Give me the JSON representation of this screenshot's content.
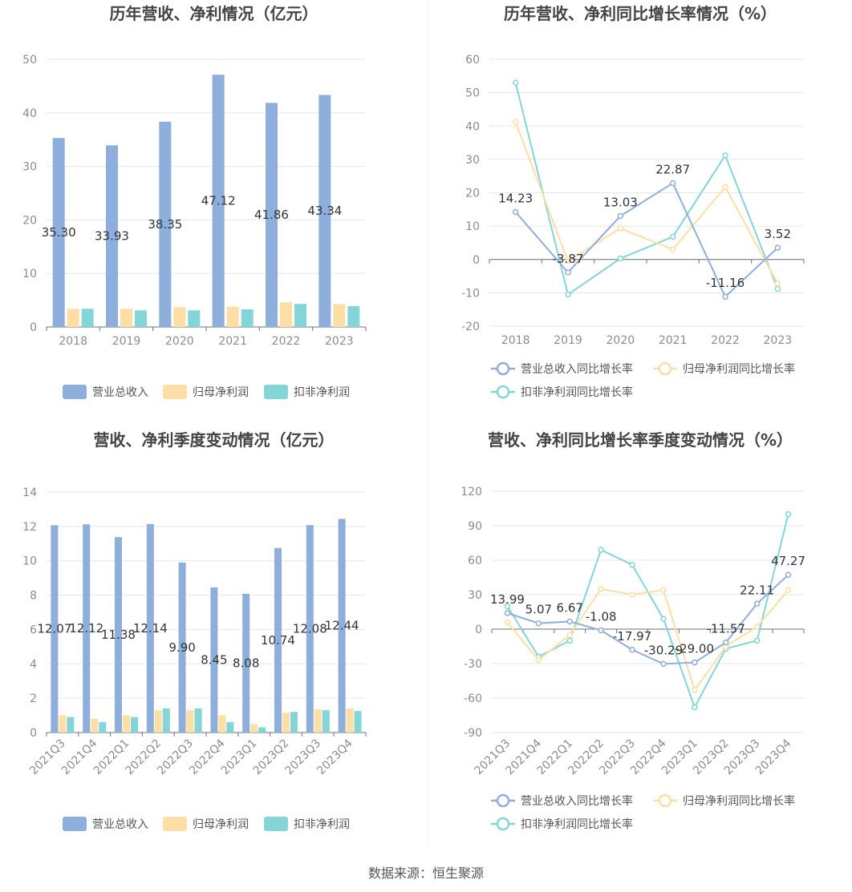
{
  "colors": {
    "revenue": "#8eaedb",
    "parent_profit": "#fddfa6",
    "deducted_profit": "#84d5d7",
    "axis": "#7f7f7f",
    "grid": "#e3e7ee",
    "title": "#444444",
    "text": "#666666"
  },
  "source_text": "数据来源：恒生聚源",
  "chart_data": [
    {
      "type": "bar",
      "title": "历年营收、净利情况（亿元）",
      "categories": [
        "2018",
        "2019",
        "2020",
        "2021",
        "2022",
        "2023"
      ],
      "ylim": [
        0,
        50
      ],
      "yticks": [
        0,
        10,
        20,
        30,
        40,
        50
      ],
      "grid": true,
      "legend_position": "bottom",
      "series": [
        {
          "name": "营业总收入",
          "values": [
            35.3,
            33.93,
            38.35,
            47.12,
            41.86,
            43.34
          ],
          "labels": [
            "35.30",
            "33.93",
            "38.35",
            "47.12",
            "41.86",
            "43.34"
          ]
        },
        {
          "name": "归母净利润",
          "values": [
            3.4,
            3.4,
            3.7,
            3.8,
            4.6,
            4.3
          ]
        },
        {
          "name": "扣非净利润",
          "values": [
            3.4,
            3.1,
            3.1,
            3.3,
            4.3,
            3.9
          ]
        }
      ]
    },
    {
      "type": "line",
      "title": "历年营收、净利同比增长率情况（%）",
      "categories": [
        "2018",
        "2019",
        "2020",
        "2021",
        "2022",
        "2023"
      ],
      "ylim": [
        -20,
        60
      ],
      "yticks": [
        -20,
        -10,
        0,
        10,
        20,
        30,
        40,
        50,
        60
      ],
      "grid": true,
      "legend_position": "bottom",
      "series": [
        {
          "name": "营业总收入同比增长率",
          "values": [
            14.23,
            -3.87,
            13.03,
            22.87,
            -11.16,
            3.52
          ],
          "labels": [
            "14.23",
            "-3.87",
            "13.03",
            "22.87",
            "-11.16",
            "3.52"
          ]
        },
        {
          "name": "归母净利润同比增长率",
          "values": [
            41.2,
            -0.5,
            9.3,
            3.0,
            21.7,
            -7.2
          ]
        },
        {
          "name": "扣非净利润同比增长率",
          "values": [
            53.0,
            -10.5,
            0.3,
            6.8,
            31.2,
            -8.8
          ]
        }
      ]
    },
    {
      "type": "bar",
      "title": "营收、净利季度变动情况（亿元）",
      "categories": [
        "2021Q3",
        "2021Q4",
        "2022Q1",
        "2022Q2",
        "2022Q3",
        "2022Q4",
        "2023Q1",
        "2023Q2",
        "2023Q3",
        "2023Q4"
      ],
      "ylim": [
        0,
        14
      ],
      "yticks": [
        0,
        2,
        4,
        6,
        8,
        10,
        12,
        14
      ],
      "grid": true,
      "legend_position": "bottom",
      "series": [
        {
          "name": "营业总收入",
          "values": [
            12.07,
            12.12,
            11.38,
            12.14,
            9.9,
            8.45,
            8.08,
            10.74,
            12.08,
            12.44
          ],
          "labels": [
            "12.07",
            "12.12",
            "11.38",
            "12.14",
            "9.90",
            "8.45",
            "8.08",
            "10.74",
            "12.08",
            "12.44"
          ]
        },
        {
          "name": "归母净利润",
          "values": [
            1.0,
            0.8,
            1.0,
            1.3,
            1.3,
            1.0,
            0.5,
            1.15,
            1.35,
            1.4
          ]
        },
        {
          "name": "扣非净利润",
          "values": [
            0.9,
            0.6,
            0.9,
            1.4,
            1.4,
            0.6,
            0.3,
            1.2,
            1.3,
            1.25
          ]
        }
      ]
    },
    {
      "type": "line",
      "title": "营收、净利同比增长率季度变动情况（%）",
      "categories": [
        "2021Q3",
        "2021Q4",
        "2022Q1",
        "2022Q2",
        "2022Q3",
        "2022Q4",
        "2023Q1",
        "2023Q2",
        "2023Q3",
        "2023Q4"
      ],
      "ylim": [
        -90,
        120
      ],
      "yticks": [
        -90,
        -60,
        -30,
        0,
        30,
        60,
        90,
        120
      ],
      "grid": true,
      "legend_position": "bottom",
      "series": [
        {
          "name": "营业总收入同比增长率",
          "values": [
            13.99,
            5.07,
            6.67,
            -1.08,
            -17.97,
            -30.29,
            -29.0,
            -11.57,
            22.11,
            47.27
          ],
          "labels": [
            "13.99",
            "5.07",
            "6.67",
            "-1.08",
            "-17.97",
            "-30.29",
            "-29.00",
            "-11.57",
            "22.11",
            "47.27"
          ]
        },
        {
          "name": "归母净利润同比增长率",
          "values": [
            6,
            -27,
            -5,
            35,
            30,
            34,
            -53,
            -15,
            2,
            34
          ]
        },
        {
          "name": "扣非净利润同比增长率",
          "values": [
            20,
            -24,
            -10,
            69,
            56,
            9,
            -68,
            -17,
            -10,
            100
          ]
        }
      ]
    }
  ]
}
